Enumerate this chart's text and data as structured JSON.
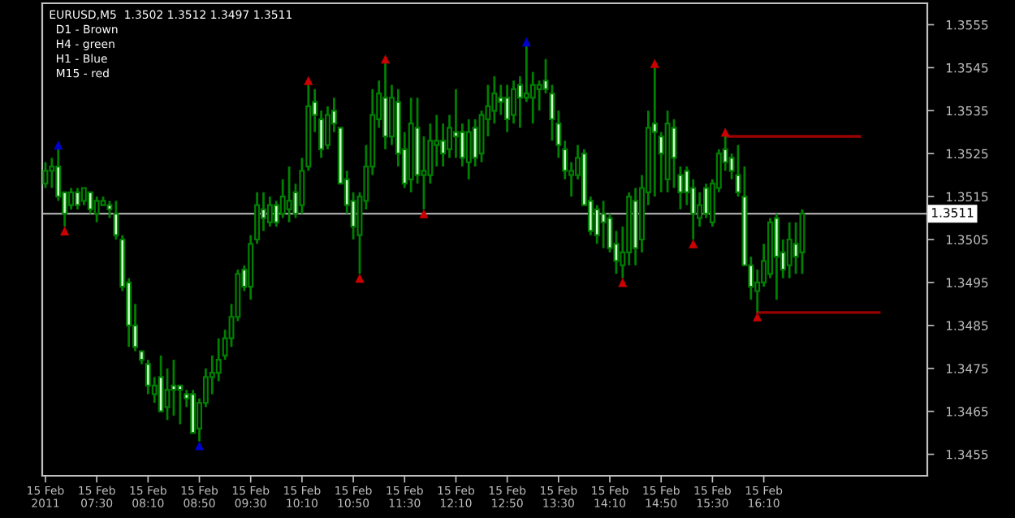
{
  "chart_data": {
    "type": "candlestick",
    "title": "EURUSD,M5  1.3502 1.3512 1.3497 1.3511",
    "annotations": [
      "D1 - Brown",
      "H4 - green",
      "H1 - Blue",
      "M15 - red"
    ],
    "categories": [
      "15 Feb 2011",
      null,
      null,
      null,
      null,
      null,
      null,
      null,
      "15 Feb 07:30",
      null,
      null,
      null,
      null,
      null,
      null,
      null,
      "15 Feb 08:10",
      null,
      null,
      null,
      null,
      null,
      null,
      null,
      "15 Feb 08:50",
      null,
      null,
      null,
      null,
      null,
      null,
      null,
      "15 Feb 09:30",
      null,
      null,
      null,
      null,
      null,
      null,
      null,
      "15 Feb 10:10",
      null,
      null,
      null,
      null,
      null,
      null,
      null,
      "15 Feb 10:50",
      null,
      null,
      null,
      null,
      null,
      null,
      null,
      "15 Feb 11:30",
      null,
      null,
      null,
      null,
      null,
      null,
      null,
      "15 Feb 12:10",
      null,
      null,
      null,
      null,
      null,
      null,
      null,
      "15 Feb 12:50",
      null,
      null,
      null,
      null,
      null,
      null,
      null,
      "15 Feb 13:30",
      null,
      null,
      null,
      null,
      null,
      null,
      null,
      "15 Feb 14:10",
      null,
      null,
      null,
      null,
      null,
      null,
      null,
      "15 Feb 14:50",
      null,
      null,
      null,
      null,
      null,
      null,
      null,
      "15 Feb 15:30",
      null,
      null,
      null,
      null,
      null,
      null,
      null,
      "15 Feb 16:10",
      null,
      null,
      null,
      null,
      null,
      null,
      null,
      null,
      null,
      null,
      null,
      null,
      null,
      null,
      null,
      null,
      null,
      null,
      null,
      null,
      null,
      null,
      null,
      null,
      null
    ],
    "ohlc": [
      [
        1.3518,
        1.3523,
        1.3517,
        1.3521
      ],
      [
        1.3521,
        1.3524,
        1.3517,
        1.3522
      ],
      [
        1.3522,
        1.3526,
        1.3514,
        1.3515
      ],
      [
        1.3516,
        1.3516,
        1.3508,
        1.3511
      ],
      [
        1.3513,
        1.3517,
        1.3512,
        1.3516
      ],
      [
        1.3516,
        1.3517,
        1.3512,
        1.3513
      ],
      [
        1.3514,
        1.3517,
        1.3513,
        1.3517
      ],
      [
        1.3516,
        1.3516,
        1.3511,
        1.3512
      ],
      [
        1.3511,
        1.3515,
        1.3509,
        1.3514
      ],
      [
        1.3513,
        1.3515,
        1.3513,
        1.3514
      ],
      [
        1.3513,
        1.3514,
        1.351,
        1.3512
      ],
      [
        1.3511,
        1.3514,
        1.3505,
        1.3506
      ],
      [
        1.3505,
        1.3506,
        1.3493,
        1.3494
      ],
      [
        1.3495,
        1.3496,
        1.348,
        1.3485
      ],
      [
        1.3485,
        1.349,
        1.3479,
        1.348
      ],
      [
        1.3479,
        1.3479,
        1.3476,
        1.3477
      ],
      [
        1.3476,
        1.3477,
        1.3469,
        1.3471
      ],
      [
        1.3469,
        1.3473,
        1.3467,
        1.3471
      ],
      [
        1.3473,
        1.3478,
        1.3465,
        1.3465
      ],
      [
        1.3466,
        1.3475,
        1.3463,
        1.347
      ],
      [
        1.3471,
        1.3477,
        1.3464,
        1.347
      ],
      [
        1.3471,
        1.3471,
        1.3462,
        1.347
      ],
      [
        1.3469,
        1.347,
        1.3466,
        1.3468
      ],
      [
        1.3469,
        1.347,
        1.346,
        1.346
      ],
      [
        1.3461,
        1.3468,
        1.3458,
        1.3467
      ],
      [
        1.3467,
        1.3475,
        1.3466,
        1.3473
      ],
      [
        1.3473,
        1.3478,
        1.3469,
        1.3474
      ],
      [
        1.3474,
        1.3482,
        1.3472,
        1.3477
      ],
      [
        1.3478,
        1.3484,
        1.3477,
        1.3482
      ],
      [
        1.3482,
        1.349,
        1.348,
        1.3487
      ],
      [
        1.3487,
        1.3498,
        1.3486,
        1.3497
      ],
      [
        1.3498,
        1.3499,
        1.3493,
        1.3494
      ],
      [
        1.3494,
        1.3506,
        1.3491,
        1.3504
      ],
      [
        1.3505,
        1.3516,
        1.3504,
        1.3513
      ],
      [
        1.3512,
        1.3516,
        1.3507,
        1.351
      ],
      [
        1.3509,
        1.3515,
        1.3508,
        1.3513
      ],
      [
        1.3513,
        1.3514,
        1.3508,
        1.3509
      ],
      [
        1.3511,
        1.3519,
        1.351,
        1.3515
      ],
      [
        1.3512,
        1.3522,
        1.3509,
        1.3514
      ],
      [
        1.3516,
        1.3518,
        1.351,
        1.3511
      ],
      [
        1.3513,
        1.3524,
        1.3511,
        1.3521
      ],
      [
        1.3522,
        1.3541,
        1.3521,
        1.3536
      ],
      [
        1.3537,
        1.354,
        1.353,
        1.3534
      ],
      [
        1.3533,
        1.3535,
        1.3524,
        1.3526
      ],
      [
        1.3527,
        1.3536,
        1.3526,
        1.3534
      ],
      [
        1.3535,
        1.3538,
        1.353,
        1.3532
      ],
      [
        1.3531,
        1.3531,
        1.3518,
        1.3518
      ],
      [
        1.3519,
        1.3521,
        1.3511,
        1.3513
      ],
      [
        1.3514,
        1.3516,
        1.3505,
        1.3508
      ],
      [
        1.3506,
        1.3516,
        1.3497,
        1.3515
      ],
      [
        1.3514,
        1.3527,
        1.3512,
        1.3522
      ],
      [
        1.3522,
        1.354,
        1.352,
        1.3534
      ],
      [
        1.3533,
        1.3542,
        1.3531,
        1.3539
      ],
      [
        1.3538,
        1.3546,
        1.3526,
        1.3529
      ],
      [
        1.3529,
        1.3541,
        1.3527,
        1.3538
      ],
      [
        1.3537,
        1.354,
        1.3522,
        1.3525
      ],
      [
        1.3526,
        1.353,
        1.3517,
        1.3518
      ],
      [
        1.3519,
        1.3538,
        1.3516,
        1.3532
      ],
      [
        1.3531,
        1.3538,
        1.3518,
        1.352
      ],
      [
        1.352,
        1.3529,
        1.3512,
        1.3521
      ],
      [
        1.352,
        1.3532,
        1.3518,
        1.3528
      ],
      [
        1.3527,
        1.3534,
        1.3522,
        1.3528
      ],
      [
        1.3528,
        1.3532,
        1.3522,
        1.3525
      ],
      [
        1.3526,
        1.3534,
        1.3524,
        1.3531
      ],
      [
        1.353,
        1.354,
        1.3524,
        1.3529
      ],
      [
        1.353,
        1.3532,
        1.3522,
        1.3524
      ],
      [
        1.3523,
        1.3533,
        1.3519,
        1.353
      ],
      [
        1.3531,
        1.3533,
        1.3522,
        1.3524
      ],
      [
        1.3525,
        1.3535,
        1.3523,
        1.3534
      ],
      [
        1.3533,
        1.3541,
        1.3529,
        1.3536
      ],
      [
        1.3535,
        1.3543,
        1.3532,
        1.3539
      ],
      [
        1.3538,
        1.3541,
        1.3534,
        1.3537
      ],
      [
        1.3538,
        1.3541,
        1.353,
        1.3533
      ],
      [
        1.3534,
        1.3542,
        1.3532,
        1.354
      ],
      [
        1.3541,
        1.3543,
        1.3531,
        1.3538
      ],
      [
        1.3538,
        1.355,
        1.3537,
        1.3539
      ],
      [
        1.3538,
        1.3544,
        1.3532,
        1.3541
      ],
      [
        1.354,
        1.3542,
        1.3535,
        1.3541
      ],
      [
        1.3542,
        1.3547,
        1.3539,
        1.354
      ],
      [
        1.3539,
        1.3541,
        1.3528,
        1.3533
      ],
      [
        1.3532,
        1.3535,
        1.3524,
        1.3527
      ],
      [
        1.3526,
        1.3528,
        1.3519,
        1.3521
      ],
      [
        1.352,
        1.3523,
        1.3515,
        1.3521
      ],
      [
        1.352,
        1.3527,
        1.3519,
        1.3524
      ],
      [
        1.3525,
        1.3526,
        1.3513,
        1.3513
      ],
      [
        1.3514,
        1.3515,
        1.3506,
        1.3507
      ],
      [
        1.3512,
        1.3513,
        1.3504,
        1.3506
      ],
      [
        1.3511,
        1.3514,
        1.3503,
        1.3509
      ],
      [
        1.351,
        1.3511,
        1.3502,
        1.3503
      ],
      [
        1.3504,
        1.3507,
        1.3497,
        1.35
      ],
      [
        1.3499,
        1.3508,
        1.3496,
        1.3502
      ],
      [
        1.3502,
        1.3516,
        1.3499,
        1.3515
      ],
      [
        1.3514,
        1.3517,
        1.3499,
        1.3503
      ],
      [
        1.3505,
        1.352,
        1.3502,
        1.3517
      ],
      [
        1.3516,
        1.3535,
        1.3513,
        1.3531
      ],
      [
        1.3532,
        1.3545,
        1.3515,
        1.353
      ],
      [
        1.3529,
        1.353,
        1.3516,
        1.3525
      ],
      [
        1.3519,
        1.3535,
        1.3516,
        1.3532
      ],
      [
        1.3531,
        1.3533,
        1.3517,
        1.3524
      ],
      [
        1.352,
        1.3522,
        1.3512,
        1.3516
      ],
      [
        1.3521,
        1.3522,
        1.3513,
        1.3516
      ],
      [
        1.3517,
        1.3519,
        1.3505,
        1.3511
      ],
      [
        1.351,
        1.3516,
        1.3508,
        1.3513
      ],
      [
        1.3517,
        1.3518,
        1.351,
        1.3511
      ],
      [
        1.3509,
        1.3519,
        1.3508,
        1.3518
      ],
      [
        1.3517,
        1.3526,
        1.3516,
        1.3525
      ],
      [
        1.3526,
        1.3529,
        1.3521,
        1.3523
      ],
      [
        1.3524,
        1.3525,
        1.3519,
        1.3521
      ],
      [
        1.352,
        1.3527,
        1.3515,
        1.3516
      ],
      [
        1.3515,
        1.3522,
        1.3499,
        1.3499
      ],
      [
        1.3499,
        1.3501,
        1.3491,
        1.3494
      ],
      [
        1.3493,
        1.3498,
        1.3488,
        1.3495
      ],
      [
        1.3495,
        1.3504,
        1.3494,
        1.35
      ],
      [
        1.3497,
        1.351,
        1.3496,
        1.3509
      ],
      [
        1.351,
        1.3511,
        1.3491,
        1.3501
      ],
      [
        1.3502,
        1.3505,
        1.3496,
        1.3498
      ],
      [
        1.3499,
        1.3509,
        1.3496,
        1.3505
      ],
      [
        1.3504,
        1.3509,
        1.3497,
        1.3501
      ],
      [
        1.3502,
        1.3512,
        1.3497,
        1.3511
      ],
      null,
      null,
      null,
      null,
      null,
      null,
      null,
      null,
      null,
      null,
      null,
      null,
      null,
      null,
      null,
      null,
      null,
      null,
      null
    ],
    "colors": [
      "#008000",
      "#008000",
      "#ccffcc",
      "#ccffcc",
      "#008000",
      "#ccffcc",
      "#008000",
      "#ccffcc",
      "#008000",
      "#008000",
      "#ccffcc",
      "#ccffcc",
      "#ccffcc",
      "#ccffcc",
      "#ccffcc",
      "#ccffcc",
      "#ccffcc",
      "#008000",
      "#ccffcc",
      "#008000",
      "#ccffcc",
      "#ccffcc",
      "#ccffcc",
      "#ccffcc",
      "#008000",
      "#008000",
      "#008000",
      "#008000",
      "#008000",
      "#008000",
      "#008000",
      "#ccffcc",
      "#008000",
      "#008000",
      "#ccffcc",
      "#008000",
      "#ccffcc",
      "#008000",
      "#008000",
      "#ccffcc",
      "#008000",
      "#008000",
      "#ccffcc",
      "#ccffcc",
      "#008000",
      "#ccffcc",
      "#ccffcc",
      "#ccffcc",
      "#ccffcc",
      "#008000",
      "#008000",
      "#008000",
      "#008000",
      "#ccffcc",
      "#008000",
      "#ccffcc",
      "#ccffcc",
      "#008000",
      "#ccffcc",
      "#008000",
      "#008000",
      "#008000",
      "#ccffcc",
      "#008000",
      "#ccffcc",
      "#ccffcc",
      "#008000",
      "#ccffcc",
      "#008000",
      "#008000",
      "#008000",
      "#ccffcc",
      "#ccffcc",
      "#008000",
      "#ccffcc",
      "#008000",
      "#008000",
      "#008000",
      "#ccffcc",
      "#ccffcc",
      "#ccffcc",
      "#ccffcc",
      "#008000",
      "#008000",
      "#ccffcc",
      "#ccffcc",
      "#ccffcc",
      "#ccffcc",
      "#ccffcc",
      "#ccffcc",
      "#008000",
      "#008000",
      "#ccffcc",
      "#008000",
      "#008000",
      "#ccffcc",
      "#ccffcc",
      "#008000",
      "#ccffcc",
      "#ccffcc",
      "#ccffcc",
      "#ccffcc",
      "#008000",
      "#ccffcc",
      "#008000",
      "#008000",
      "#ccffcc",
      "#ccffcc",
      "#ccffcc",
      "#ccffcc",
      "#ccffcc",
      "#008000",
      "#008000",
      "#008000",
      "#ccffcc",
      "#ccffcc",
      "#008000",
      "#ccffcc",
      "#008000",
      null,
      null,
      null,
      null,
      null,
      null,
      null,
      null,
      null,
      null,
      null,
      null,
      null,
      null,
      null,
      null,
      null,
      null,
      null
    ],
    "series": [
      {
        "type": "scatter",
        "marker": "triangle",
        "color": "#0000cc",
        "values": [
          null,
          null,
          1.3527,
          null,
          null,
          null,
          null,
          null,
          null,
          null,
          null,
          null,
          null,
          null,
          null,
          null,
          null,
          null,
          null,
          null,
          null,
          null,
          null,
          null,
          1.3457,
          null,
          null,
          null,
          null,
          null,
          null,
          null,
          null,
          null,
          null,
          null,
          null,
          null,
          null,
          null,
          null,
          null,
          null,
          null,
          null,
          null,
          null,
          null,
          null,
          null,
          null,
          null,
          null,
          null,
          null,
          null,
          null,
          null,
          null,
          null,
          null,
          null,
          null,
          null,
          null,
          null,
          null,
          null,
          null,
          null,
          null,
          null,
          null,
          null,
          null,
          1.3551,
          null,
          null,
          null,
          null,
          null,
          null,
          null,
          null,
          null,
          null,
          null,
          null,
          null,
          null,
          null,
          null,
          null,
          null,
          null,
          null,
          null,
          null,
          null,
          null,
          null,
          null,
          null,
          null,
          null,
          null,
          null,
          null,
          null,
          null,
          null,
          null,
          null,
          null,
          null,
          null,
          null,
          null,
          null,
          null,
          null,
          null,
          null,
          null,
          null,
          null,
          null,
          null,
          null,
          null,
          null,
          null,
          null,
          null,
          null,
          null,
          null,
          null
        ]
      },
      {
        "type": "scatter",
        "marker": "triangle",
        "color": "#cc0000",
        "values": [
          null,
          null,
          null,
          1.3507,
          null,
          null,
          null,
          null,
          null,
          null,
          null,
          null,
          null,
          null,
          null,
          null,
          null,
          null,
          null,
          null,
          null,
          null,
          null,
          null,
          null,
          null,
          null,
          null,
          null,
          null,
          null,
          null,
          null,
          null,
          null,
          null,
          null,
          null,
          null,
          null,
          null,
          1.3542,
          null,
          null,
          null,
          null,
          null,
          null,
          null,
          1.3496,
          null,
          null,
          null,
          1.3547,
          null,
          null,
          null,
          null,
          null,
          1.3511,
          null,
          null,
          null,
          null,
          null,
          null,
          null,
          null,
          null,
          null,
          null,
          null,
          null,
          null,
          null,
          null,
          null,
          null,
          null,
          null,
          null,
          null,
          null,
          null,
          null,
          null,
          null,
          null,
          null,
          null,
          1.3495,
          null,
          null,
          null,
          null,
          1.3546,
          null,
          null,
          null,
          null,
          null,
          1.3504,
          null,
          null,
          null,
          null,
          1.353,
          null,
          null,
          null,
          null,
          1.3487,
          null,
          null,
          null,
          null,
          null,
          null,
          null,
          null,
          null,
          null,
          null,
          null,
          null,
          null,
          null,
          null,
          null,
          null,
          null,
          null,
          null,
          null,
          null,
          null,
          null,
          null
        ]
      },
      {
        "type": "line",
        "color": "#990000",
        "values": [
          null,
          null,
          null,
          null,
          null,
          null,
          null,
          null,
          null,
          null,
          null,
          null,
          null,
          null,
          null,
          null,
          null,
          null,
          null,
          null,
          null,
          null,
          null,
          null,
          null,
          null,
          null,
          null,
          null,
          null,
          null,
          null,
          null,
          null,
          null,
          null,
          null,
          null,
          null,
          null,
          null,
          null,
          null,
          null,
          null,
          null,
          null,
          null,
          null,
          null,
          null,
          null,
          null,
          null,
          null,
          null,
          null,
          null,
          null,
          null,
          null,
          null,
          null,
          null,
          null,
          null,
          null,
          null,
          null,
          null,
          null,
          null,
          null,
          null,
          null,
          null,
          null,
          null,
          null,
          null,
          null,
          null,
          null,
          null,
          null,
          null,
          null,
          null,
          null,
          null,
          null,
          null,
          null,
          null,
          null,
          null,
          null,
          null,
          null,
          null,
          null,
          null,
          null,
          null,
          null,
          null,
          1.3529,
          1.3529,
          1.3529,
          1.3529,
          1.3529,
          1.3529,
          1.3529,
          1.3529,
          1.3529,
          1.3529,
          1.3529,
          1.3529,
          1.3529,
          1.3529,
          1.3529,
          1.3529,
          1.3529,
          1.3529,
          1.3529,
          1.3529,
          1.3529,
          1.3529,
          null,
          null,
          null,
          null,
          null,
          null,
          null,
          null,
          null,
          null
        ]
      },
      {
        "type": "line",
        "color": "#990000",
        "values": [
          null,
          null,
          null,
          null,
          null,
          null,
          null,
          null,
          null,
          null,
          null,
          null,
          null,
          null,
          null,
          null,
          null,
          null,
          null,
          null,
          null,
          null,
          null,
          null,
          null,
          null,
          null,
          null,
          null,
          null,
          null,
          null,
          null,
          null,
          null,
          null,
          null,
          null,
          null,
          null,
          null,
          null,
          null,
          null,
          null,
          null,
          null,
          null,
          null,
          null,
          null,
          null,
          null,
          null,
          null,
          null,
          null,
          null,
          null,
          null,
          null,
          null,
          null,
          null,
          null,
          null,
          null,
          null,
          null,
          null,
          null,
          null,
          null,
          null,
          null,
          null,
          null,
          null,
          null,
          null,
          null,
          null,
          null,
          null,
          null,
          null,
          null,
          null,
          null,
          null,
          null,
          null,
          null,
          null,
          null,
          null,
          null,
          null,
          null,
          null,
          null,
          null,
          null,
          null,
          null,
          null,
          null,
          null,
          null,
          null,
          null,
          1.3488,
          1.3488,
          1.3488,
          1.3488,
          1.3488,
          1.3488,
          1.3488,
          1.3488,
          1.3488,
          1.3488,
          1.3488,
          1.3488,
          1.3488,
          1.3488,
          1.3488,
          1.3488,
          1.3488,
          1.3488,
          1.3488,
          1.3488,
          null,
          null,
          null,
          null,
          null,
          null,
          null
        ]
      }
    ],
    "ref_lines": [
      {
        "axis": "y",
        "value": 1.3511,
        "label": "1.3511",
        "color": "#c0c0c0"
      }
    ],
    "ylim": [
      1.345,
      1.356
    ],
    "yticks": [
      1.3455,
      1.3465,
      1.3475,
      1.3485,
      1.3495,
      1.3505,
      1.3515,
      1.3525,
      1.3535,
      1.3545,
      1.3555
    ]
  }
}
